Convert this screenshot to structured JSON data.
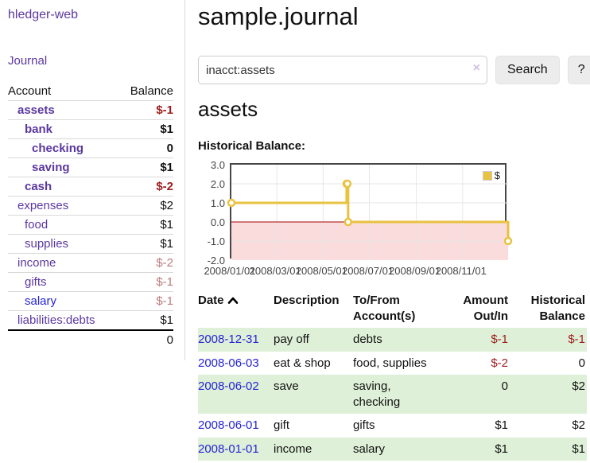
{
  "app": {
    "brand": "hledger-web"
  },
  "nav": {
    "journal": "Journal"
  },
  "colors": {
    "link_purple": "#5b37a0",
    "link_blue": "#2424d6",
    "negative_strong": "#9d1c1c",
    "negative_soft": "#bd7b7b",
    "row_stripe_green": "#dff0d8"
  },
  "sidebar": {
    "header": {
      "account": "Account",
      "balance": "Balance"
    },
    "rows": [
      {
        "label": "assets",
        "balance": "$-1"
      },
      {
        "label": "bank",
        "balance": "$1"
      },
      {
        "label": "checking",
        "balance": "0"
      },
      {
        "label": "saving",
        "balance": "$1"
      },
      {
        "label": "cash",
        "balance": "$-2"
      },
      {
        "label": "expenses",
        "balance": "$2"
      },
      {
        "label": "food",
        "balance": "$1"
      },
      {
        "label": "supplies",
        "balance": "$1"
      },
      {
        "label": "income",
        "balance": "$-2"
      },
      {
        "label": "gifts",
        "balance": "$-1"
      },
      {
        "label": "salary",
        "balance": "$-1"
      },
      {
        "label": "liabilities:debts",
        "balance": "$1"
      }
    ],
    "total": "0"
  },
  "main": {
    "title": "sample.journal",
    "search": {
      "value": "inacct:assets",
      "clear_icon": "×",
      "search_button": "Search",
      "help_button": "?"
    },
    "account_heading": "assets",
    "section_label": "Historical Balance:"
  },
  "chart_data": {
    "type": "line",
    "step": true,
    "title": "Historical Balance:",
    "x": [
      "2008-01-01",
      "2008-06-01",
      "2008-06-02",
      "2008-06-03",
      "2008-12-31"
    ],
    "series": [
      {
        "name": "$",
        "color": "#E9C240",
        "values": [
          1,
          2,
          2,
          0,
          -1
        ]
      }
    ],
    "xrange": [
      "2008-01-01",
      "2008-12-31"
    ],
    "ylim": [
      -2,
      3
    ],
    "yticks": [
      {
        "v": 3,
        "label": "3.0"
      },
      {
        "v": 2,
        "label": "2.0"
      },
      {
        "v": 1,
        "label": "1.0"
      },
      {
        "v": 0,
        "label": "0.0"
      },
      {
        "v": -1,
        "label": "-1.0"
      },
      {
        "v": -2,
        "label": "-2.0"
      }
    ],
    "xticks": [
      {
        "v": "2008-01-01",
        "label": "2008/01/01"
      },
      {
        "v": "2008-03-01",
        "label": "2008/03/01"
      },
      {
        "v": "2008-05-01",
        "label": "2008/05/01"
      },
      {
        "v": "2008-07-01",
        "label": "2008/07/01"
      },
      {
        "v": "2008-09-01",
        "label": "2008/09/01"
      },
      {
        "v": "2008-11-01",
        "label": "2008/11/01"
      }
    ],
    "legend": {
      "position": "top-right",
      "label": "$"
    },
    "grid": true,
    "colors": {
      "line": "#E9C240",
      "marker_fill": "#ffffff",
      "negative_region": "#fbdcdc",
      "zero_line": "#a40000",
      "grid": "#e6e6e6",
      "border": "#474747"
    }
  },
  "register": {
    "headers": {
      "date": "Date",
      "description": "Description",
      "accounts": "To/From Account(s)",
      "amount": "Amount Out/In",
      "balance": "Historical Balance"
    },
    "rows": [
      {
        "date": "2008-12-31",
        "description": "pay off",
        "accounts": "debts",
        "amount": "$-1",
        "balance": "$-1"
      },
      {
        "date": "2008-06-03",
        "description": "eat & shop",
        "accounts": "food, supplies",
        "amount": "$-2",
        "balance": "0"
      },
      {
        "date": "2008-06-02",
        "description": "save",
        "accounts": "saving, checking",
        "amount": "0",
        "balance": "$2"
      },
      {
        "date": "2008-06-01",
        "description": "gift",
        "accounts": "gifts",
        "amount": "$1",
        "balance": "$2"
      },
      {
        "date": "2008-01-01",
        "description": "income",
        "accounts": "salary",
        "amount": "$1",
        "balance": "$1"
      }
    ]
  }
}
